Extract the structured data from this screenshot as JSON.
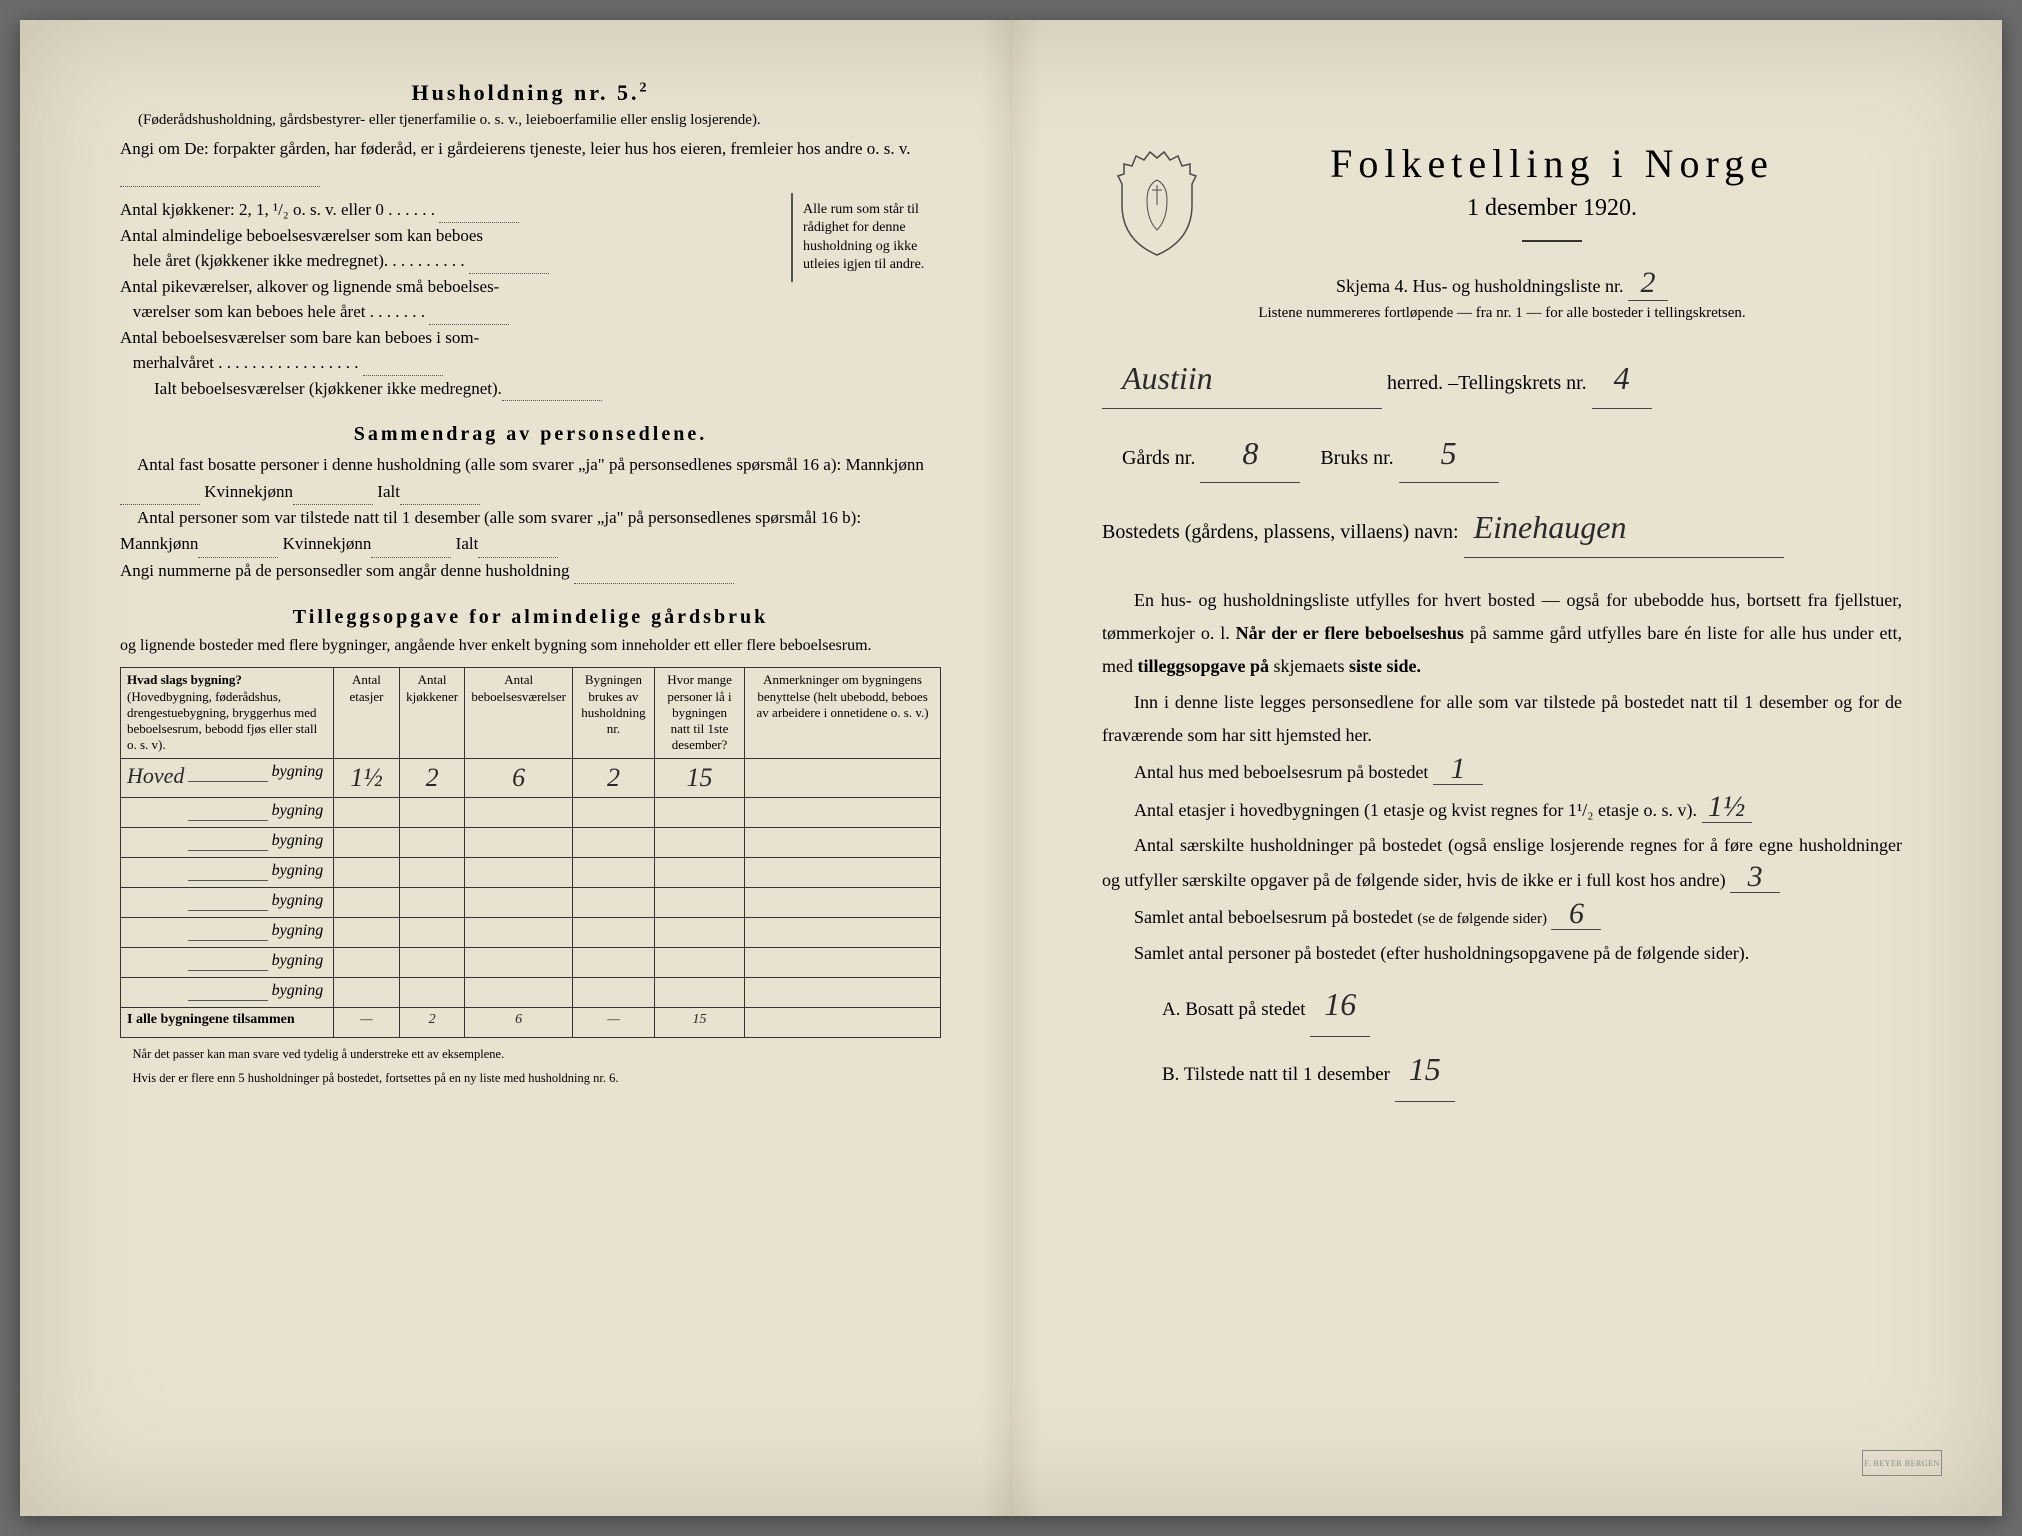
{
  "background_color": "#e8e2d0",
  "text_color": "#2a2a2a",
  "handwriting_color": "#2a2a2a",
  "left": {
    "household_title": "Husholdning nr. 5.",
    "household_superscript": "2",
    "household_sub": "(Føderådshusholdning, gårdsbestyrer- eller tjenerfamilie o. s. v., leieboerfamilie eller enslig losjerende).",
    "instr_line": "Angi om De: forpakter gården, har føderåd, er i gårdeierens tjeneste, leier hus hos eieren, fremleier hos andre o. s. v.",
    "rooms": {
      "brace_text": "Alle rum som står til rådighet for denne husholdning og ikke utleies igjen til andre.",
      "l1": "Antal kjøkkener: 2, 1, ¹/₂ o. s. v. eller 0",
      "l2a": "Antal almindelige beboelsesværelser som kan beboes",
      "l2b": "hele året (kjøkkener ikke medregnet).",
      "l3a": "Antal pikeværelser, alkover og lignende små beboelses-",
      "l3b": "værelser som kan beboes hele året",
      "l4a": "Antal beboelsesværelser som bare kan beboes i som-",
      "l4b": "merhalvåret",
      "l5": "Ialt beboelsesværelser (kjøkkener ikke medregnet)."
    },
    "sammendrag_title": "Sammendrag av personsedlene.",
    "samm_p1a": "Antal fast bosatte personer i denne husholdning (alle som svarer",
    "samm_p1b": "ja",
    "samm_p1c": "på personsedlenes spørsmål 16 a): Mannkjønn",
    "samm_p1d": "Kvinnekjønn",
    "samm_p1e": "Ialt",
    "samm_p2a": "Antal personer som var tilstede natt til 1 desember (alle som svarer",
    "samm_p2c": "på personsedlenes spørsmål 16 b): Mannkjønn",
    "samm_p3": "Angi nummerne på de personsedler som angår denne husholdning",
    "tillegg_title": "Tilleggsopgave for almindelige gårdsbruk",
    "tillegg_intro": "og lignende bosteder med flere bygninger, angående hver enkelt bygning som inneholder ett eller flere beboelsesrum.",
    "table": {
      "headers": {
        "c1_title": "Hvad slags bygning?",
        "c1_sub": "(Hovedbygning, føderådshus, drengestuebygning, bryggerhus med beboelsesrum, bebodd fjøs eller stall o. s. v).",
        "c2": "Antal etasjer",
        "c3": "Antal kjøkkener",
        "c4": "Antal beboelsesværelser",
        "c5": "Bygningen brukes av husholdning nr.",
        "c6": "Hvor mange personer lå i bygningen natt til 1ste desember?",
        "c7": "Anmerkninger om bygningens benyttelse (helt ubebodd, beboes av arbeidere i onnetidene o. s. v.)"
      },
      "row_suffix": "bygning",
      "rows": [
        {
          "prefix": "Hoved",
          "etasjer": "1½",
          "kjokken": "2",
          "bebo": "6",
          "hush": "2",
          "pers": "15"
        },
        {
          "prefix": "",
          "etasjer": "",
          "kjokken": "",
          "bebo": "",
          "hush": "",
          "pers": ""
        },
        {
          "prefix": "",
          "etasjer": "",
          "kjokken": "",
          "bebo": "",
          "hush": "",
          "pers": ""
        },
        {
          "prefix": "",
          "etasjer": "",
          "kjokken": "",
          "bebo": "",
          "hush": "",
          "pers": ""
        },
        {
          "prefix": "",
          "etasjer": "",
          "kjokken": "",
          "bebo": "",
          "hush": "",
          "pers": ""
        },
        {
          "prefix": "",
          "etasjer": "",
          "kjokken": "",
          "bebo": "",
          "hush": "",
          "pers": ""
        },
        {
          "prefix": "",
          "etasjer": "",
          "kjokken": "",
          "bebo": "",
          "hush": "",
          "pers": ""
        },
        {
          "prefix": "",
          "etasjer": "",
          "kjokken": "",
          "bebo": "",
          "hush": "",
          "pers": ""
        }
      ],
      "total_label": "I alle bygningene tilsammen",
      "total": {
        "etasjer": "—",
        "kjokken": "2",
        "bebo": "6",
        "hush": "—",
        "pers": "15"
      }
    },
    "footnote1": "Når det passer kan man svare ved tydelig å understreke ett av eksemplene.",
    "footnote2": "Hvis der er flere enn 5 husholdninger på bostedet, fortsettes på en ny liste med husholdning nr. 6."
  },
  "right": {
    "title": "Folketelling i Norge",
    "date": "1 desember 1920.",
    "skjema_a": "Skjema 4.  Hus- og husholdningsliste nr.",
    "skjema_nr": "2",
    "sub_note": "Listene nummereres fortløpende — fra nr. 1 — for alle bosteder i tellingskretsen.",
    "herred_value": "Austiin",
    "herred_label": "herred.  –Tellingskrets nr.",
    "krets_nr": "4",
    "gards_label": "Gårds nr.",
    "gards_nr": "8",
    "bruks_label": "Bruks nr.",
    "bruks_nr": "5",
    "bosted_label": "Bostedets (gårdens, plassens, villaens) navn:",
    "bosted_value": "Einehaugen",
    "p1": "En hus- og husholdningsliste utfylles for hvert bosted — også for ubebodde hus, bortsett fra fjellstuer, tømmerkojer o. l.",
    "p1b": "Når der er flere beboelseshus",
    "p1c": "på samme gård utfylles bare én liste for alle hus under ett, med",
    "p1d": "tilleggsopgave på",
    "p1e": "skjemaets",
    "p1f": "siste side.",
    "p2": "Inn i denne liste legges personsedlene for alle som var tilstede på bostedet natt til 1 desember og for de fraværende som har sitt hjemsted her.",
    "q1": "Antal hus med beboelsesrum på bostedet",
    "q1_val": "1",
    "q2a": "Antal etasjer i hovedbygningen (1 etasje og kvist regnes for 1¹/₂ etasje o. s. v).",
    "q2_val": "1½",
    "q3": "Antal særskilte husholdninger på bostedet (også enslige losjerende regnes for å føre egne husholdninger og utfyller særskilte opgaver på de følgende sider, hvis de ikke er i full kost hos andre)",
    "q3_val": "3",
    "q4": "Samlet antal beboelsesrum på bostedet",
    "q4_paren": "(se de følgende sider)",
    "q4_val": "6",
    "q5": "Samlet antal personer på bostedet (efter husholdningsopgavene på de følgende sider).",
    "ab_a": "A.  Bosatt på stedet",
    "ab_a_val": "16",
    "ab_b": "B.  Tilstede natt til 1 desember",
    "ab_b_val": "15",
    "stamp": "F. BEYER BERGEN"
  }
}
